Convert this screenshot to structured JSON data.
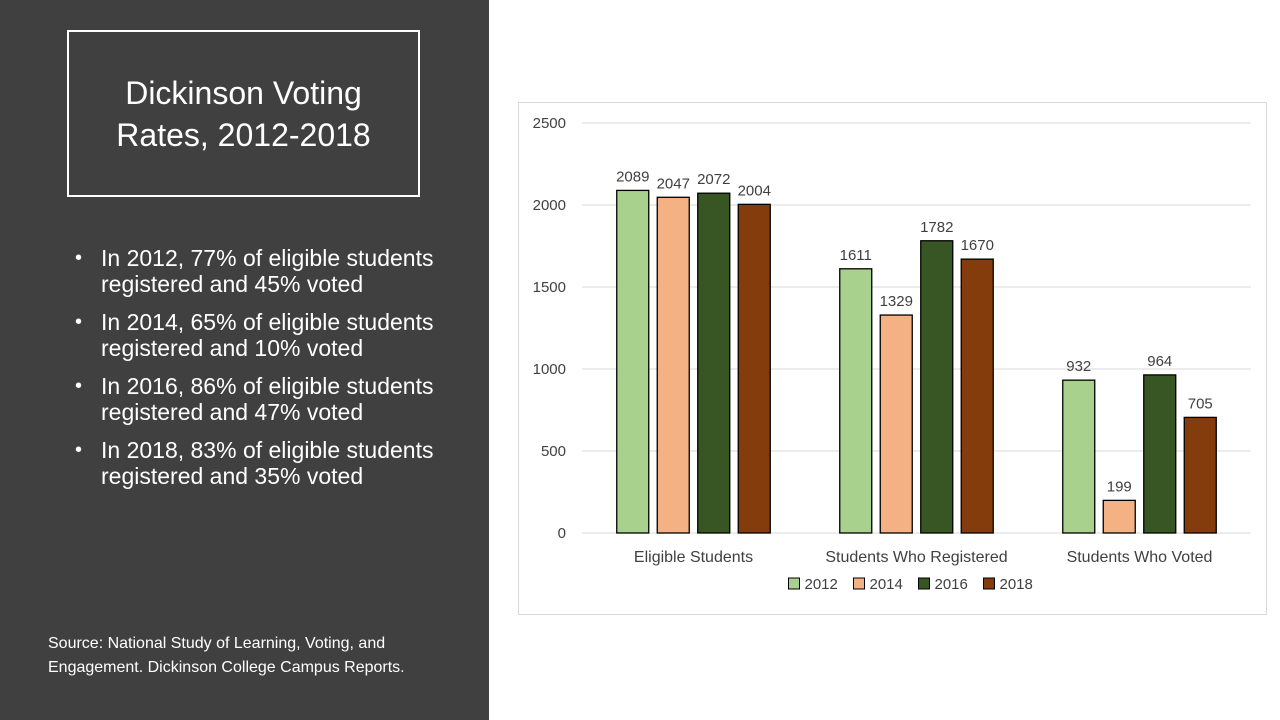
{
  "slide": {
    "title": "Dickinson Voting Rates, 2012-2018",
    "bullets": [
      "In 2012, 77% of eligible students registered and 45% voted",
      "In 2014, 65% of eligible students registered and 10% voted",
      "In 2016, 86% of eligible students registered and 47% voted",
      "In 2018, 83% of eligible students registered and 35% voted"
    ],
    "bullet_glyph": "•",
    "source": "Source: National Study of Learning, Voting, and Engagement. Dickinson College Campus Reports."
  },
  "colors": {
    "panel_bg": "#404040",
    "series": [
      "#a9d18e",
      "#f4b183",
      "#375623",
      "#843c0c"
    ],
    "gridline": "#d9d9d9",
    "text": "#404040"
  },
  "chart_data": {
    "type": "bar",
    "title": "",
    "xlabel": "",
    "ylabel": "",
    "categories": [
      "Eligible Students",
      "Students Who Registered",
      "Students Who Voted"
    ],
    "series": [
      {
        "name": "2012",
        "values": [
          2089,
          1611,
          932
        ]
      },
      {
        "name": "2014",
        "values": [
          2047,
          1329,
          199
        ]
      },
      {
        "name": "2016",
        "values": [
          2072,
          1782,
          964
        ]
      },
      {
        "name": "2018",
        "values": [
          2004,
          1670,
          705
        ]
      }
    ],
    "ylim": [
      0,
      2500
    ],
    "yticks": [
      0,
      500,
      1000,
      1500,
      2000,
      2500
    ],
    "grid": true,
    "legend": "bottom",
    "data_labels": true
  }
}
